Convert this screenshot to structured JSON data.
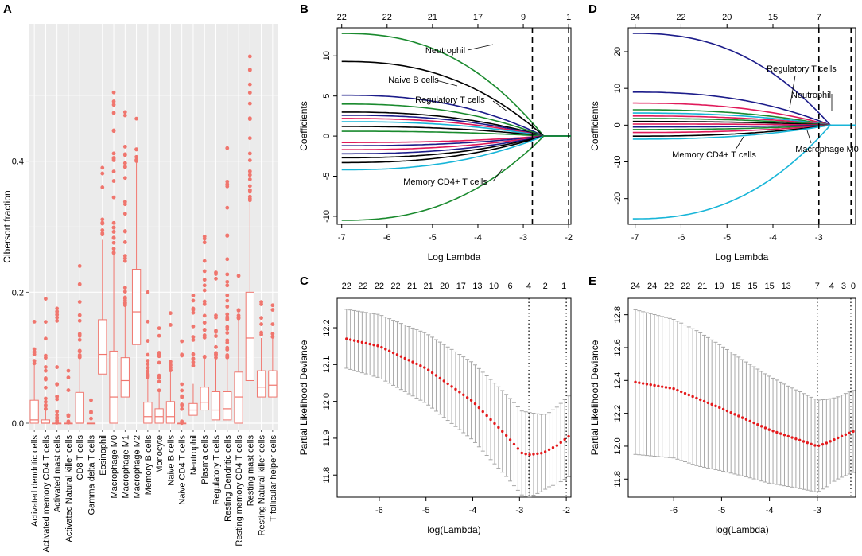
{
  "chart_data": [
    {
      "panel": "A",
      "type": "box",
      "ylabel": "Cibersort fraction",
      "ylim": [
        0,
        0.6
      ],
      "yticks": [
        "0.0",
        "0.2",
        "0.4"
      ],
      "box_color": "#f0766e",
      "categories": [
        "Activated dendritic cells",
        "Activated memory CD4 T cells",
        "Activated mast cells",
        "Activated Natural killer cells",
        "CD8 T cells",
        "Gamma delta T cells",
        "Eosinophil",
        "Macrophage M0",
        "Macrophage M1",
        "Macrophage M2",
        "Memory B cells",
        "Monocyte",
        "Naive B cells",
        "Naive CD4 T cells",
        "Neutrophil",
        "Plasma cells",
        "Regulatory T cells",
        "Resting Dendritic cells",
        "Resting memory CD4 T cells",
        "Resting mast cells",
        "Resting Natural killer cells",
        "T follicular helper cells"
      ],
      "boxes": [
        {
          "q1": 0.0,
          "med": 0.005,
          "q3": 0.035,
          "whi": 0.09,
          "max": 0.155
        },
        {
          "q1": 0.0,
          "med": 0.0,
          "q3": 0.005,
          "whi": 0.02,
          "max": 0.19
        },
        {
          "q1": 0.0,
          "med": 0.0,
          "q3": 0.0,
          "whi": 0.0,
          "max": 0.175
        },
        {
          "q1": 0.0,
          "med": 0.0,
          "q3": 0.0,
          "whi": 0.0,
          "max": 0.08
        },
        {
          "q1": 0.0,
          "med": 0.0,
          "q3": 0.047,
          "whi": 0.1,
          "max": 0.24
        },
        {
          "q1": 0.0,
          "med": 0.0,
          "q3": 0.0,
          "whi": 0.0,
          "max": 0.035
        },
        {
          "q1": 0.075,
          "med": 0.105,
          "q3": 0.158,
          "whi": 0.28,
          "max": 0.39
        },
        {
          "q1": 0.0,
          "med": 0.04,
          "q3": 0.11,
          "whi": 0.26,
          "max": 0.505
        },
        {
          "q1": 0.04,
          "med": 0.065,
          "q3": 0.1,
          "whi": 0.18,
          "max": 0.475
        },
        {
          "q1": 0.12,
          "med": 0.17,
          "q3": 0.235,
          "whi": 0.4,
          "max": 0.465
        },
        {
          "q1": 0.0,
          "med": 0.01,
          "q3": 0.032,
          "whi": 0.07,
          "max": 0.2
        },
        {
          "q1": 0.0,
          "med": 0.01,
          "q3": 0.022,
          "whi": 0.05,
          "max": 0.145
        },
        {
          "q1": 0.0,
          "med": 0.01,
          "q3": 0.033,
          "whi": 0.08,
          "max": 0.168
        },
        {
          "q1": 0.0,
          "med": 0.0,
          "q3": 0.0,
          "whi": 0.0,
          "max": 0.125
        },
        {
          "q1": 0.012,
          "med": 0.02,
          "q3": 0.03,
          "whi": 0.06,
          "max": 0.195
        },
        {
          "q1": 0.02,
          "med": 0.032,
          "q3": 0.055,
          "whi": 0.1,
          "max": 0.285
        },
        {
          "q1": 0.005,
          "med": 0.02,
          "q3": 0.048,
          "whi": 0.1,
          "max": 0.23
        },
        {
          "q1": 0.005,
          "med": 0.022,
          "q3": 0.048,
          "whi": 0.1,
          "max": 0.42
        },
        {
          "q1": 0.0,
          "med": 0.04,
          "q3": 0.078,
          "whi": 0.16,
          "max": 0.225
        },
        {
          "q1": 0.065,
          "med": 0.13,
          "q3": 0.2,
          "whi": 0.34,
          "max": 0.56
        },
        {
          "q1": 0.04,
          "med": 0.055,
          "q3": 0.08,
          "whi": 0.13,
          "max": 0.185
        },
        {
          "q1": 0.04,
          "med": 0.058,
          "q3": 0.08,
          "whi": 0.13,
          "max": 0.18
        }
      ]
    },
    {
      "panel": "B",
      "type": "line",
      "xlabel": "Log Lambda",
      "ylabel": "Coefficients",
      "xlim": [
        -7.1,
        -1.95
      ],
      "ylim": [
        -11,
        13.5
      ],
      "xticks": [
        "-7",
        "-6",
        "-5",
        "-4",
        "-3",
        "-2"
      ],
      "yticks": [
        "-10",
        "-5",
        "0",
        "5",
        "10"
      ],
      "top_ticks": [
        "22",
        "22",
        "21",
        "17",
        "9",
        "1"
      ],
      "top_positions": [
        -7,
        -6,
        -5,
        -4,
        -3,
        -2
      ],
      "vlines": [
        -2.8,
        -2.0
      ],
      "annotations": [
        "Neutrophil",
        "Naive B cells",
        "Regulatory T cells",
        "Memory CD4+ T cells"
      ],
      "series": [
        {
          "start": 12.8,
          "color": "#1a8a2e"
        },
        {
          "start": 9.3,
          "color": "#000000"
        },
        {
          "start": 5.1,
          "color": "#1c1c8a"
        },
        {
          "start": 4.0,
          "color": "#1a8a2e"
        },
        {
          "start": 3.0,
          "color": "#000000"
        },
        {
          "start": 2.6,
          "color": "#1c1c8a"
        },
        {
          "start": 2.2,
          "color": "#e0195a"
        },
        {
          "start": 1.8,
          "color": "#17b5d8"
        },
        {
          "start": 1.2,
          "color": "#000000"
        },
        {
          "start": 0.6,
          "color": "#1a8a2e"
        },
        {
          "start": -0.8,
          "color": "#e0195a"
        },
        {
          "start": -1.2,
          "color": "#1c1c8a"
        },
        {
          "start": -1.7,
          "color": "#e0195a"
        },
        {
          "start": -2.2,
          "color": "#1c1c8a"
        },
        {
          "start": -2.7,
          "color": "#000000"
        },
        {
          "start": -3.3,
          "color": "#000000"
        },
        {
          "start": -4.2,
          "color": "#17b5d8"
        },
        {
          "start": -10.5,
          "color": "#1a8a2e"
        }
      ]
    },
    {
      "panel": "C",
      "type": "errorbar",
      "xlabel": "log(Lambda)",
      "ylabel": "Partial Likelihood Deviance",
      "xlim": [
        -6.9,
        -1.9
      ],
      "ylim": [
        11.74,
        12.28
      ],
      "xticks": [
        "-6",
        "-5",
        "-4",
        "-3",
        "-2"
      ],
      "yticks": [
        "11.8",
        "11.9",
        "12.0",
        "12.1",
        "12.2"
      ],
      "top_ticks": [
        "22",
        "22",
        "22",
        "22",
        "21",
        "21",
        "20",
        "17",
        "13",
        "10",
        "6",
        "4",
        "2",
        "1"
      ],
      "top_positions": [
        -6.7,
        -6.35,
        -6.0,
        -5.65,
        -5.3,
        -4.95,
        -4.6,
        -4.25,
        -3.9,
        -3.55,
        -3.2,
        -2.8,
        -2.45,
        -2.05
      ],
      "vlines": [
        -2.8,
        -2.0
      ],
      "mean_path": [
        [
          -6.7,
          12.17
        ],
        [
          -6.0,
          12.15
        ],
        [
          -5.0,
          12.09
        ],
        [
          -4.0,
          12.0
        ],
        [
          -3.3,
          11.91
        ],
        [
          -2.95,
          11.86
        ],
        [
          -2.8,
          11.855
        ],
        [
          -2.5,
          11.86
        ],
        [
          -2.2,
          11.88
        ],
        [
          -1.95,
          11.905
        ]
      ],
      "err_path": [
        [
          -6.7,
          0.08
        ],
        [
          -5.5,
          0.09
        ],
        [
          -4.5,
          0.1
        ],
        [
          -3.5,
          0.11
        ],
        [
          -2.8,
          0.115
        ],
        [
          -2.4,
          0.1
        ],
        [
          -1.95,
          0.11
        ]
      ]
    },
    {
      "panel": "D",
      "type": "line",
      "xlabel": "Log Lambda",
      "ylabel": "Coefficients",
      "xlim": [
        -7.15,
        -2.2
      ],
      "ylim": [
        -27,
        26.5
      ],
      "xticks": [
        "-7",
        "-6",
        "-5",
        "-4",
        "-3"
      ],
      "yticks": [
        "-20",
        "-10",
        "0",
        "10",
        "20"
      ],
      "top_ticks": [
        "24",
        "22",
        "20",
        "15",
        "7"
      ],
      "top_positions": [
        -7,
        -6,
        -5,
        -4,
        -3
      ],
      "vlines": [
        -3.0,
        -2.3
      ],
      "annotations": [
        "Regulatory T cells",
        "Neutrophil",
        "Macrophage M0",
        "Memory CD4+ T cells"
      ],
      "series": [
        {
          "start": 25,
          "color": "#1c1c8a"
        },
        {
          "start": 9,
          "color": "#1c1c8a"
        },
        {
          "start": 6,
          "color": "#e0195a"
        },
        {
          "start": 4.2,
          "color": "#1a8a2e"
        },
        {
          "start": 3.3,
          "color": "#17b5d8"
        },
        {
          "start": 2.5,
          "color": "#e0195a"
        },
        {
          "start": 1.8,
          "color": "#1a8a2e"
        },
        {
          "start": 1.0,
          "color": "#000000"
        },
        {
          "start": 0.3,
          "color": "#e0195a"
        },
        {
          "start": -0.5,
          "color": "#1c1c8a"
        },
        {
          "start": -1.2,
          "color": "#1a8a2e"
        },
        {
          "start": -2.0,
          "color": "#e0195a"
        },
        {
          "start": -3.0,
          "color": "#000000"
        },
        {
          "start": -3.8,
          "color": "#17b5d8"
        },
        {
          "start": -25.5,
          "color": "#17b5d8"
        }
      ]
    },
    {
      "panel": "E",
      "type": "errorbar",
      "xlabel": "log(Lambda)",
      "ylabel": "Partial Likelihood Deviance",
      "xlim": [
        -6.95,
        -2.2
      ],
      "ylim": [
        11.69,
        12.9
      ],
      "xticks": [
        "-6",
        "-5",
        "-4",
        "-3"
      ],
      "yticks": [
        "11.8",
        "12.0",
        "12.2",
        "12.4",
        "12.6",
        "12.8"
      ],
      "top_ticks": [
        "24",
        "24",
        "22",
        "22",
        "21",
        "19",
        "15",
        "15",
        "15",
        "13",
        "7",
        "4",
        "3",
        "0"
      ],
      "top_positions": [
        -6.8,
        -6.45,
        -6.1,
        -5.75,
        -5.4,
        -5.05,
        -4.7,
        -4.35,
        -4.0,
        -3.65,
        -3.0,
        -2.7,
        -2.45,
        -2.25
      ],
      "vlines": [
        -3.0,
        -2.3
      ],
      "mean_path": [
        [
          -6.8,
          12.39
        ],
        [
          -6.0,
          12.35
        ],
        [
          -5.0,
          12.23
        ],
        [
          -4.0,
          12.1
        ],
        [
          -3.3,
          12.03
        ],
        [
          -3.0,
          12.0
        ],
        [
          -2.8,
          12.02
        ],
        [
          -2.5,
          12.06
        ],
        [
          -2.25,
          12.09
        ]
      ],
      "err_path": [
        [
          -6.8,
          0.44
        ],
        [
          -5.5,
          0.41
        ],
        [
          -4.5,
          0.35
        ],
        [
          -3.5,
          0.3
        ],
        [
          -3.0,
          0.28
        ],
        [
          -2.6,
          0.25
        ],
        [
          -2.25,
          0.25
        ]
      ]
    }
  ]
}
